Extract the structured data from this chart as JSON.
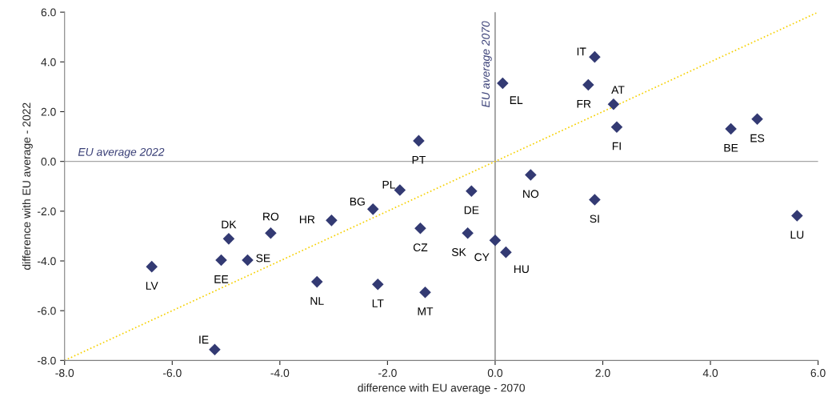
{
  "chart_data": {
    "type": "scatter",
    "xlabel": "difference with EU average - 2070",
    "ylabel": "difference with EU average - 2022",
    "xlim": [
      -8,
      6
    ],
    "ylim": [
      -8,
      6
    ],
    "xticks": [
      {
        "value": -8,
        "label": "-8.0"
      },
      {
        "value": -6,
        "label": "-6.0"
      },
      {
        "value": -4,
        "label": "-4.0"
      },
      {
        "value": -2,
        "label": "-2.0"
      },
      {
        "value": 0,
        "label": "0.0"
      },
      {
        "value": 2,
        "label": "2.0"
      },
      {
        "value": 4,
        "label": "4.0"
      },
      {
        "value": 6,
        "label": "6.0"
      }
    ],
    "yticks": [
      {
        "value": -8,
        "label": "-8.0"
      },
      {
        "value": -6,
        "label": "-6.0"
      },
      {
        "value": -4,
        "label": "-4.0"
      },
      {
        "value": -2,
        "label": "-2.0"
      },
      {
        "value": 0,
        "label": "0.0"
      },
      {
        "value": 2,
        "label": "2.0"
      },
      {
        "value": 4,
        "label": "4.0"
      },
      {
        "value": 6,
        "label": "6.0"
      }
    ],
    "grid": false,
    "marker": "diamond",
    "series": [
      {
        "color": "#333a73",
        "x": [
          1.85,
          0.14,
          1.73,
          2.2,
          2.26,
          4.38,
          4.87,
          -1.42,
          0.66,
          -0.44,
          -1.77,
          1.85,
          -2.27,
          -3.04,
          -4.17,
          -1.39,
          -0.51,
          -4.95,
          5.61,
          0.0,
          0.2,
          -5.09,
          -4.6,
          -6.38,
          -3.31,
          -2.18,
          -1.3,
          -5.21
        ],
        "values": [
          4.2,
          3.14,
          3.08,
          2.3,
          1.38,
          1.31,
          1.7,
          0.83,
          -0.54,
          -1.19,
          -1.15,
          -1.54,
          -1.92,
          -2.37,
          -2.88,
          -2.69,
          -2.88,
          -3.11,
          -2.18,
          -3.17,
          -3.65,
          -3.97,
          -3.97,
          -4.23,
          -4.84,
          -4.94,
          -5.26,
          -7.56
        ]
      },
      {
        "type": "line",
        "color": "#f5d000",
        "line_style": "dotted",
        "marker": "none",
        "x": [
          -8,
          6
        ],
        "values": [
          -8,
          6
        ]
      }
    ],
    "ref_lines": [
      {
        "axis": "y",
        "value": 0,
        "label": "EU average 2022",
        "color": "#a6a6a6"
      },
      {
        "axis": "x",
        "value": 0,
        "label": "EU average 2070",
        "color": "#808080"
      }
    ],
    "annotations": [
      {
        "text": "IT",
        "x": 1.85,
        "y": 4.2
      },
      {
        "text": "EL",
        "x": 0.14,
        "y": 3.14
      },
      {
        "text": "FR",
        "x": 1.73,
        "y": 3.08
      },
      {
        "text": "AT",
        "x": 2.2,
        "y": 2.3
      },
      {
        "text": "FI",
        "x": 2.26,
        "y": 1.38
      },
      {
        "text": "BE",
        "x": 4.38,
        "y": 1.31
      },
      {
        "text": "ES",
        "x": 4.87,
        "y": 1.7
      },
      {
        "text": "PT",
        "x": -1.42,
        "y": 0.83
      },
      {
        "text": "NO",
        "x": 0.66,
        "y": -0.54
      },
      {
        "text": "DE",
        "x": -0.44,
        "y": -1.19
      },
      {
        "text": "PL",
        "x": -1.77,
        "y": -1.15
      },
      {
        "text": "SI",
        "x": 1.85,
        "y": -1.54
      },
      {
        "text": "BG",
        "x": -2.27,
        "y": -1.92
      },
      {
        "text": "HR",
        "x": -3.04,
        "y": -2.37
      },
      {
        "text": "RO",
        "x": -4.17,
        "y": -2.88
      },
      {
        "text": "CZ",
        "x": -1.39,
        "y": -2.69
      },
      {
        "text": "SK",
        "x": -0.51,
        "y": -2.88
      },
      {
        "text": "DK",
        "x": -4.95,
        "y": -3.11
      },
      {
        "text": "LU",
        "x": 5.61,
        "y": -2.18
      },
      {
        "text": "CY",
        "x": 0.0,
        "y": -3.17
      },
      {
        "text": "HU",
        "x": 0.2,
        "y": -3.65
      },
      {
        "text": "EE",
        "x": -5.09,
        "y": -3.97
      },
      {
        "text": "SE",
        "x": -4.6,
        "y": -3.97
      },
      {
        "text": "LV",
        "x": -6.38,
        "y": -4.23
      },
      {
        "text": "NL",
        "x": -3.31,
        "y": -4.84
      },
      {
        "text": "LT",
        "x": -2.18,
        "y": -4.94
      },
      {
        "text": "MT",
        "x": -1.3,
        "y": -5.26
      },
      {
        "text": "IE",
        "x": -5.21,
        "y": -7.56
      }
    ]
  }
}
